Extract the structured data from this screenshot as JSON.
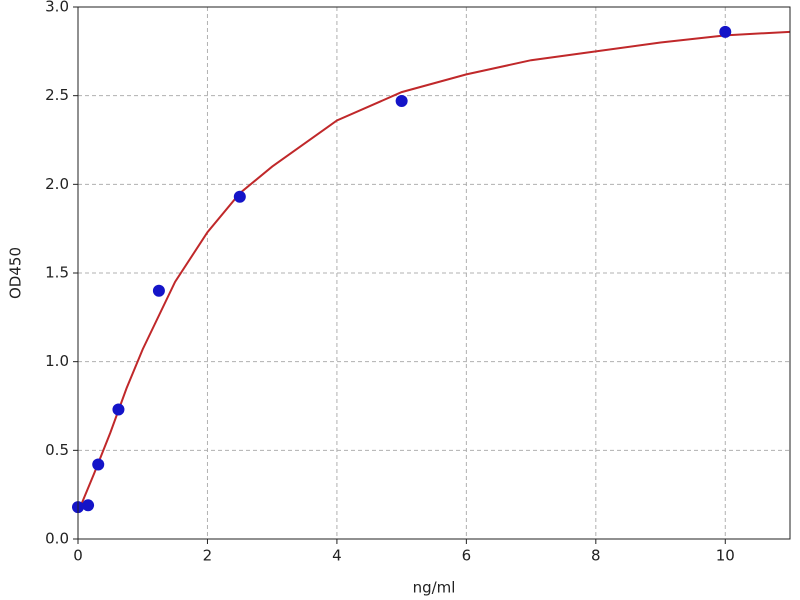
{
  "chart_data": {
    "type": "scatter",
    "xlabel": "ng/ml",
    "ylabel": "OD450",
    "xlim": [
      0,
      11
    ],
    "ylim": [
      0,
      3
    ],
    "xticks": [
      0,
      2,
      4,
      6,
      8,
      10
    ],
    "yticks": [
      {
        "value": 0,
        "label": "0.0"
      },
      {
        "value": 0.5,
        "label": "0.5"
      },
      {
        "value": 1,
        "label": "1.0"
      },
      {
        "value": 1.5,
        "label": "1.5"
      },
      {
        "value": 2,
        "label": "2.0"
      },
      {
        "value": 2.5,
        "label": "2.5"
      },
      {
        "value": 3,
        "label": "3.0"
      }
    ],
    "grid": true,
    "series": [
      {
        "type": "line",
        "color": "#c0282a",
        "x": [
          0,
          0.25,
          0.5,
          0.75,
          1,
          1.5,
          2,
          2.5,
          3,
          4,
          5,
          6,
          7,
          8,
          9,
          10,
          11
        ],
        "values": [
          0.15,
          0.37,
          0.6,
          0.85,
          1.07,
          1.45,
          1.73,
          1.95,
          2.1,
          2.36,
          2.52,
          2.62,
          2.7,
          2.75,
          2.8,
          2.84,
          2.86
        ]
      },
      {
        "type": "scatter",
        "color": "#1414c8",
        "x": [
          0,
          0.156,
          0.3125,
          0.625,
          1.25,
          2.5,
          5,
          10
        ],
        "values": [
          0.18,
          0.19,
          0.42,
          0.73,
          1.4,
          1.93,
          2.47,
          2.86
        ]
      }
    ]
  }
}
